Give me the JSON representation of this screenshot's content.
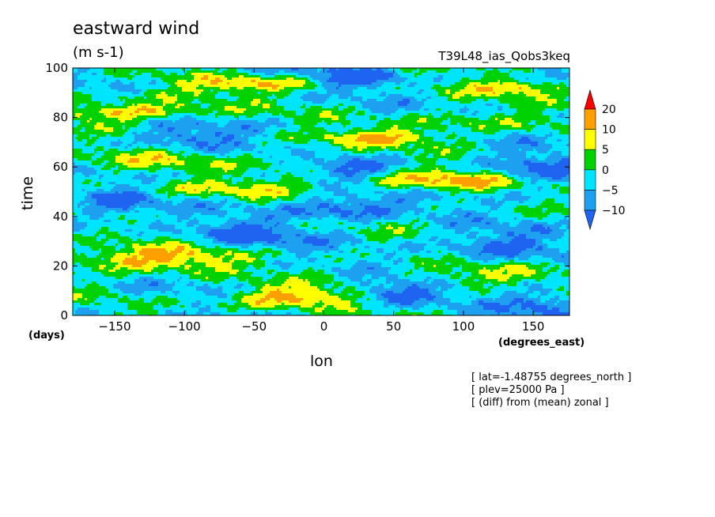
{
  "title": "eastward wind",
  "units": "(m s-1)",
  "run_id": "T39L48_ias_Qobs3keq",
  "notes": [
    "[ lat=-1.48755 degrees_north ]",
    "[ plev=25000 Pa ]",
    "[ (diff) from (mean) zonal ]"
  ],
  "chart_data": {
    "type": "heatmap",
    "title": "eastward wind",
    "xlabel": "lon",
    "ylabel": "time",
    "x_unit_label": "(degrees_east)",
    "y_unit_label": "(days)",
    "xlim": [
      -180,
      176
    ],
    "ylim": [
      0,
      100
    ],
    "x_ticks": [
      -150,
      -100,
      -50,
      0,
      50,
      100,
      150
    ],
    "y_ticks": [
      0,
      20,
      40,
      60,
      80,
      100
    ],
    "colorbar": {
      "levels": [
        -10,
        -5,
        0,
        5,
        10,
        20
      ],
      "colors": [
        "#1e64f0",
        "#1ea0f0",
        "#00e5ff",
        "#00d200",
        "#ffff00",
        "#ffa000",
        "#ff0000"
      ],
      "extend": "both"
    },
    "features": [
      {
        "lon": -135,
        "time": 82,
        "dlon": 55,
        "dtime": 3,
        "value": 14
      },
      {
        "lon": -125,
        "time": 23,
        "dlon": 60,
        "dtime": 5,
        "value": 16
      },
      {
        "lon": -25,
        "time": 7,
        "dlon": 45,
        "dtime": 4,
        "value": 15
      },
      {
        "lon": 85,
        "time": 54,
        "dlon": 70,
        "dtime": 4,
        "value": 14
      },
      {
        "lon": 40,
        "time": 72,
        "dlon": 50,
        "dtime": 3,
        "value": 11
      },
      {
        "lon": 140,
        "time": 92,
        "dlon": 40,
        "dtime": 3,
        "value": 12
      },
      {
        "lon": -45,
        "time": 94,
        "dlon": 45,
        "dtime": 3,
        "value": 10
      },
      {
        "lon": -80,
        "time": 51,
        "dlon": 60,
        "dtime": 4,
        "value": 8
      },
      {
        "lon": -140,
        "time": 62,
        "dlon": 50,
        "dtime": 5,
        "value": 8
      },
      {
        "lon": 90,
        "time": 16,
        "dlon": 70,
        "dtime": 4,
        "value": 7
      },
      {
        "lon": 100,
        "time": 78,
        "dlon": 45,
        "dtime": 5,
        "value": 7
      },
      {
        "lon": -110,
        "time": 89,
        "dlon": 50,
        "dtime": 4,
        "value": 7
      },
      {
        "lon": 20,
        "time": 38,
        "dlon": 40,
        "dtime": 4,
        "value": 6
      },
      {
        "lon": -10,
        "time": 64,
        "dlon": 40,
        "dtime": 4,
        "value": 6
      },
      {
        "lon": 15,
        "time": 42,
        "dlon": 40,
        "dtime": 7,
        "value": -13
      },
      {
        "lon": 20,
        "time": 60,
        "dlon": 30,
        "dtime": 5,
        "value": -10
      },
      {
        "lon": 25,
        "time": 96,
        "dlon": 30,
        "dtime": 4,
        "value": -12
      },
      {
        "lon": 150,
        "time": 57,
        "dlon": 35,
        "dtime": 8,
        "value": -10
      },
      {
        "lon": -60,
        "time": 32,
        "dlon": 40,
        "dtime": 6,
        "value": -9
      },
      {
        "lon": 120,
        "time": 28,
        "dlon": 40,
        "dtime": 6,
        "value": -9
      },
      {
        "lon": -150,
        "time": 45,
        "dlon": 30,
        "dtime": 8,
        "value": -9
      },
      {
        "lon": 50,
        "time": 10,
        "dlon": 30,
        "dtime": 6,
        "value": -10
      },
      {
        "lon": 160,
        "time": 5,
        "dlon": 30,
        "dtime": 6,
        "value": -9
      },
      {
        "lon": -100,
        "time": 72,
        "dlon": 35,
        "dtime": 5,
        "value": -9
      }
    ]
  }
}
